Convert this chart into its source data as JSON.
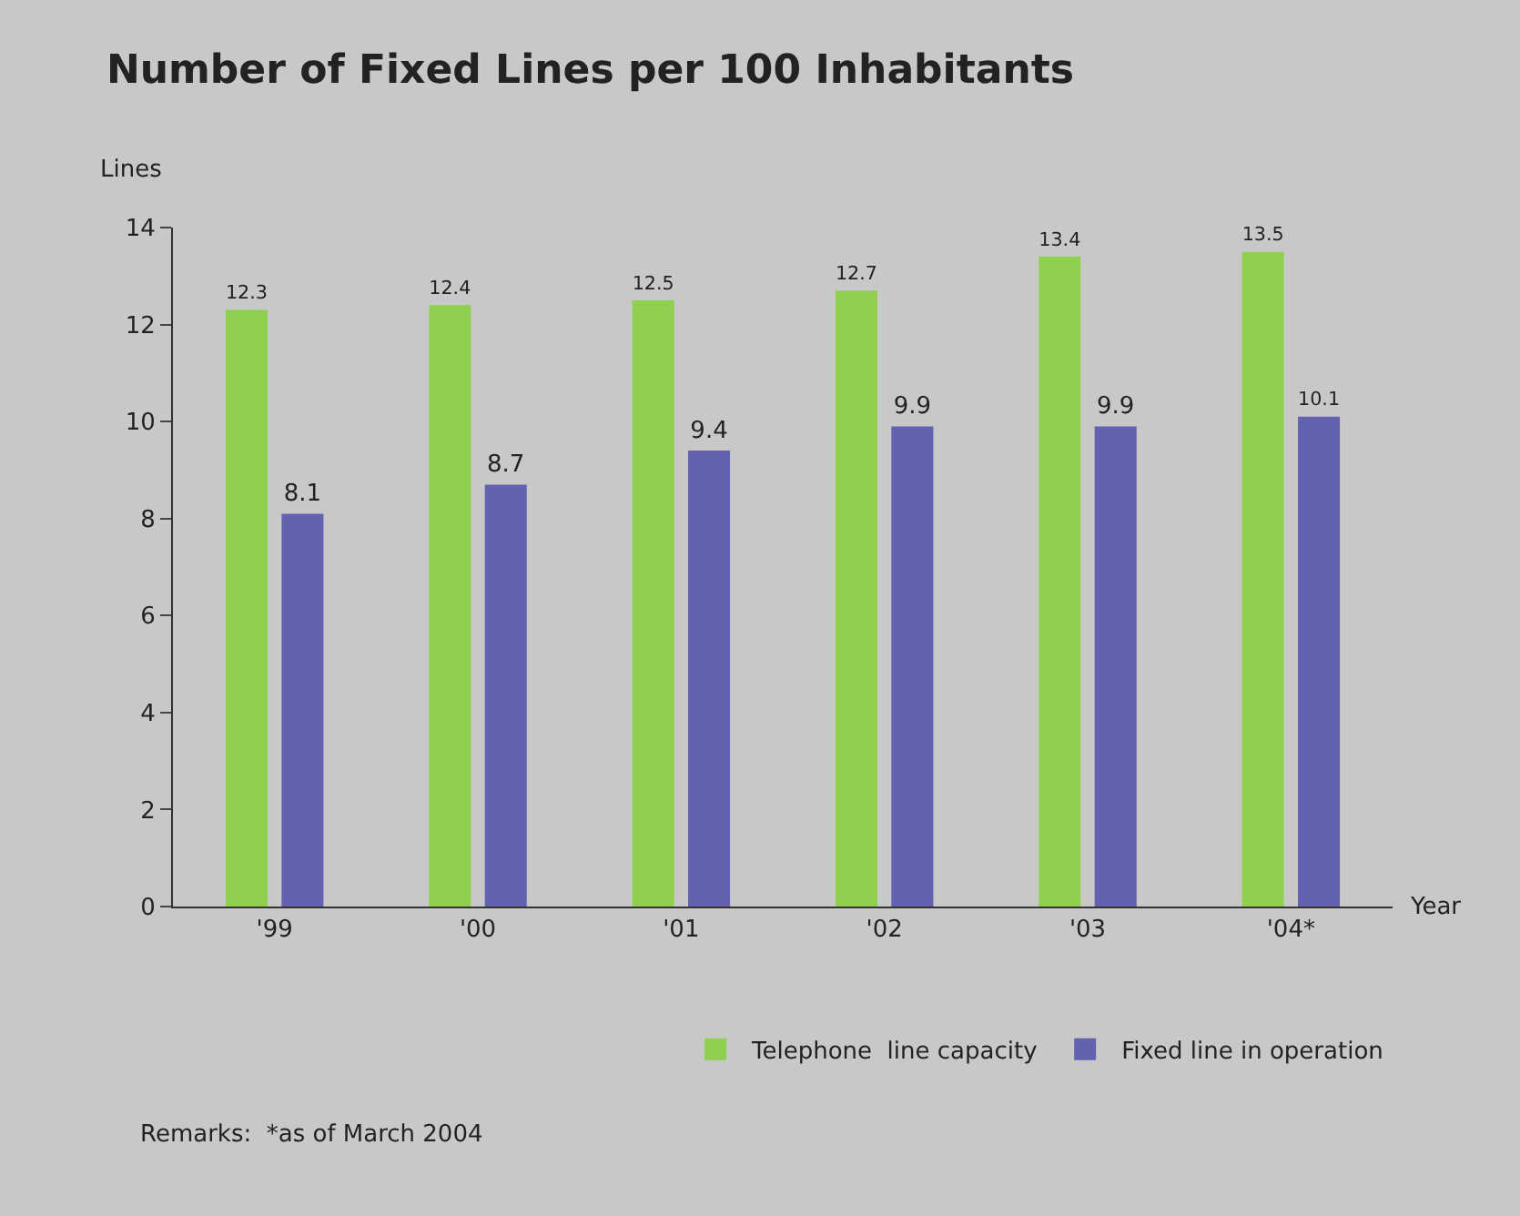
{
  "chart_data": {
    "type": "bar",
    "title": "Number of Fixed Lines per 100 Inhabitants",
    "ylabel": "Lines",
    "xlabel": "Year",
    "categories": [
      "'99",
      "'00",
      "'01",
      "'02",
      "'03",
      "'04*"
    ],
    "series": [
      {
        "name": "Telephone  line capacity",
        "color": "#8fd14f",
        "values": [
          12.3,
          12.4,
          12.5,
          12.7,
          13.4,
          13.5
        ]
      },
      {
        "name": "Fixed line in operation",
        "color": "#6262b0",
        "values": [
          8.1,
          8.7,
          9.4,
          9.9,
          9.9,
          10.1
        ]
      }
    ],
    "ylim": [
      0,
      14
    ],
    "yticks": [
      0,
      2,
      4,
      6,
      8,
      10,
      12,
      14
    ],
    "data_labels": true,
    "grid": false,
    "legend": "bottom right",
    "annotations": [
      "Remarks:  *as of March 2004"
    ]
  }
}
